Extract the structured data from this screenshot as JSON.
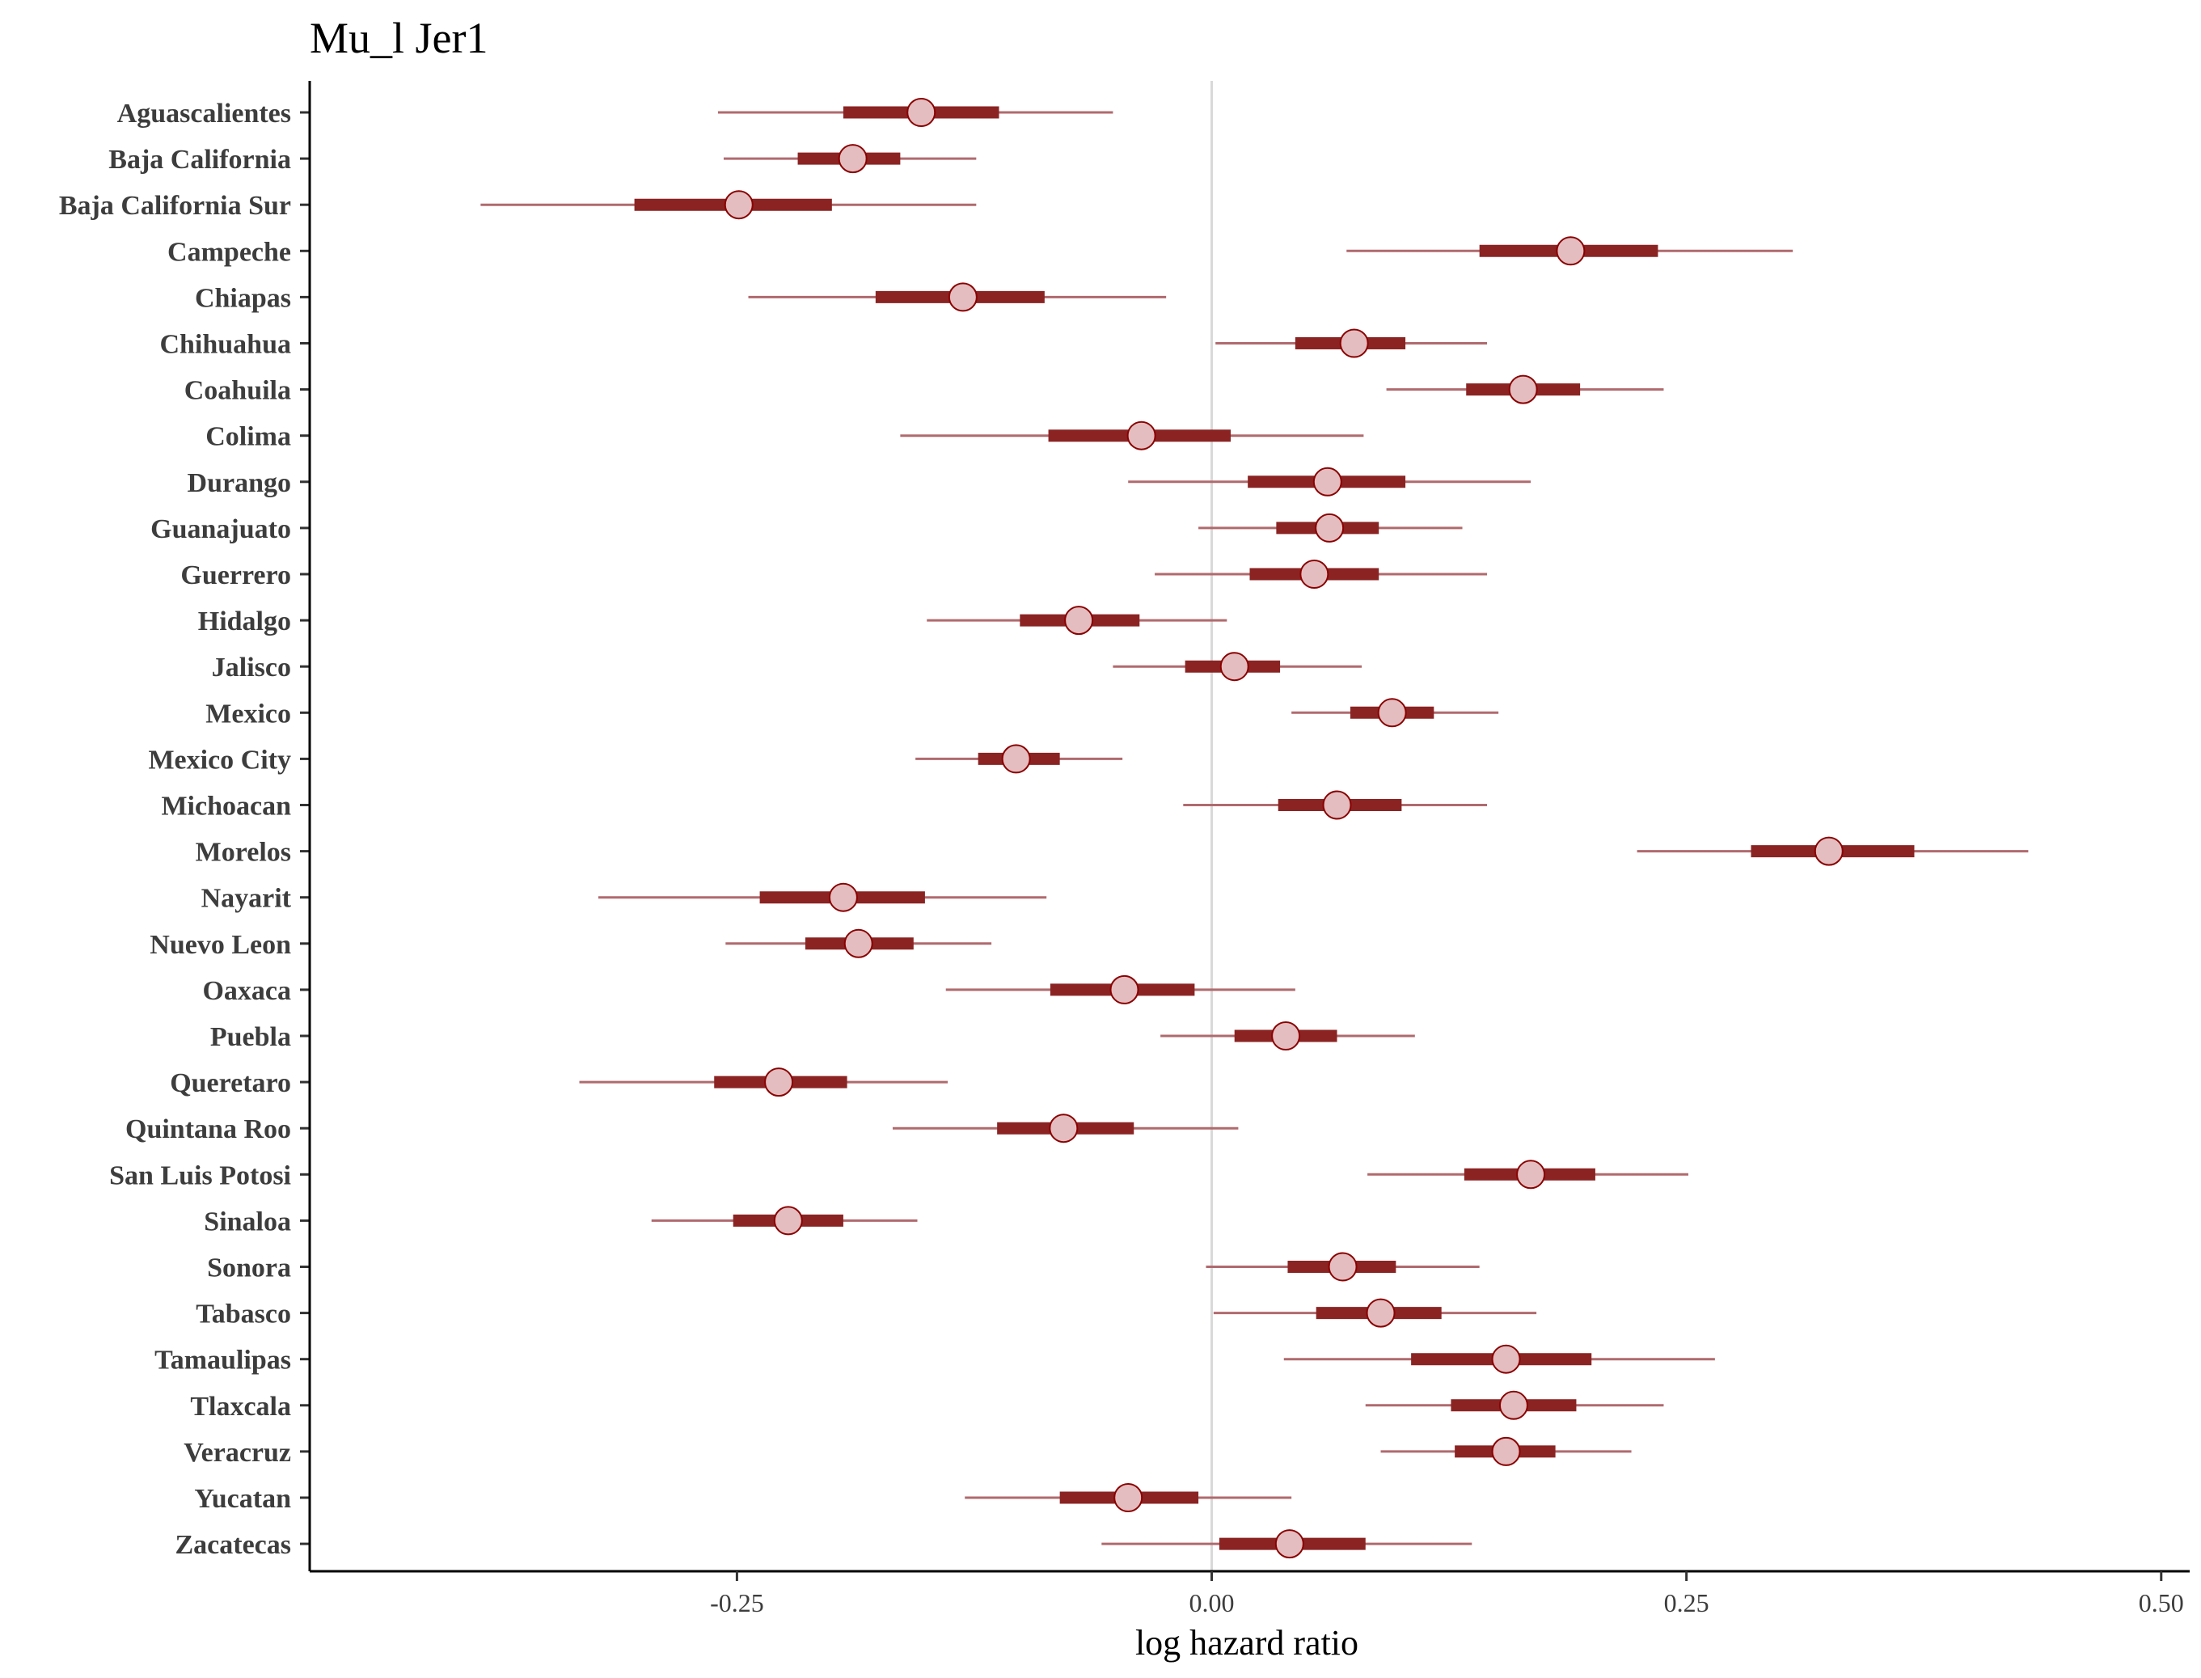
{
  "chart_data": {
    "type": "interval",
    "title": "Mu_l Jer1",
    "xlabel": "log hazard ratio",
    "ylabel": "",
    "xlim": [
      -0.475,
      0.515
    ],
    "xticks": [
      -0.25,
      0.0,
      0.25,
      0.5
    ],
    "xtick_labels": [
      "-0.25",
      "0.00",
      "0.25",
      "0.50"
    ],
    "reference_line": 0,
    "grid": false,
    "colors": {
      "outer_interval": "#b06a6e",
      "inner_interval": "#8b2323",
      "point_fill": "#e3bdbf",
      "point_stroke": "#8b0000",
      "reference_line": "#d9d9d9",
      "axis": "#000000"
    },
    "categories": [
      "Aguascalientes",
      "Baja California",
      "Baja California Sur",
      "Campeche",
      "Chiapas",
      "Chihuahua",
      "Coahuila",
      "Colima",
      "Durango",
      "Guanajuato",
      "Guerrero",
      "Hidalgo",
      "Jalisco",
      "Mexico",
      "Mexico City",
      "Michoacan",
      "Morelos",
      "Nayarit",
      "Nuevo Leon",
      "Oaxaca",
      "Puebla",
      "Queretaro",
      "Quintana Roo",
      "San Luis Potosi",
      "Sinaloa",
      "Sonora",
      "Tabasco",
      "Tamaulipas",
      "Tlaxcala",
      "Veracruz",
      "Yucatan",
      "Zacatecas"
    ],
    "point": [
      -0.153,
      -0.189,
      -0.249,
      0.189,
      -0.131,
      0.075,
      0.164,
      -0.037,
      0.061,
      0.062,
      0.054,
      -0.07,
      0.012,
      0.095,
      -0.103,
      0.066,
      0.325,
      -0.194,
      -0.186,
      -0.046,
      0.039,
      -0.228,
      -0.078,
      0.168,
      -0.223,
      0.069,
      0.089,
      0.155,
      0.159,
      0.155,
      -0.044,
      0.041
    ],
    "inner_lo": [
      -0.194,
      -0.218,
      -0.304,
      0.141,
      -0.177,
      0.044,
      0.134,
      -0.086,
      0.019,
      0.034,
      0.02,
      -0.101,
      -0.014,
      0.073,
      -0.123,
      0.035,
      0.284,
      -0.238,
      -0.214,
      -0.085,
      0.012,
      -0.262,
      -0.113,
      0.133,
      -0.252,
      0.04,
      0.055,
      0.105,
      0.126,
      0.128,
      -0.08,
      0.004
    ],
    "inner_hi": [
      -0.112,
      -0.164,
      -0.2,
      0.235,
      -0.088,
      0.102,
      0.194,
      0.01,
      0.102,
      0.088,
      0.088,
      -0.038,
      0.036,
      0.117,
      -0.08,
      0.1,
      0.37,
      -0.151,
      -0.157,
      -0.009,
      0.066,
      -0.192,
      -0.041,
      0.202,
      -0.194,
      0.097,
      0.121,
      0.2,
      0.192,
      0.181,
      -0.007,
      0.081
    ],
    "outer_lo": [
      -0.26,
      -0.257,
      -0.385,
      0.071,
      -0.244,
      0.002,
      0.092,
      -0.164,
      -0.044,
      -0.007,
      -0.03,
      -0.15,
      -0.052,
      0.042,
      -0.156,
      -0.015,
      0.224,
      -0.323,
      -0.256,
      -0.14,
      -0.027,
      -0.333,
      -0.168,
      0.082,
      -0.295,
      -0.003,
      0.001,
      0.038,
      0.081,
      0.089,
      -0.13,
      -0.058
    ],
    "outer_hi": [
      -0.052,
      -0.124,
      -0.124,
      0.306,
      -0.024,
      0.145,
      0.238,
      0.08,
      0.168,
      0.132,
      0.145,
      0.008,
      0.079,
      0.151,
      -0.047,
      0.145,
      0.43,
      -0.087,
      -0.116,
      0.044,
      0.107,
      -0.139,
      0.014,
      0.251,
      -0.155,
      0.141,
      0.171,
      0.265,
      0.238,
      0.221,
      0.042,
      0.137
    ]
  }
}
